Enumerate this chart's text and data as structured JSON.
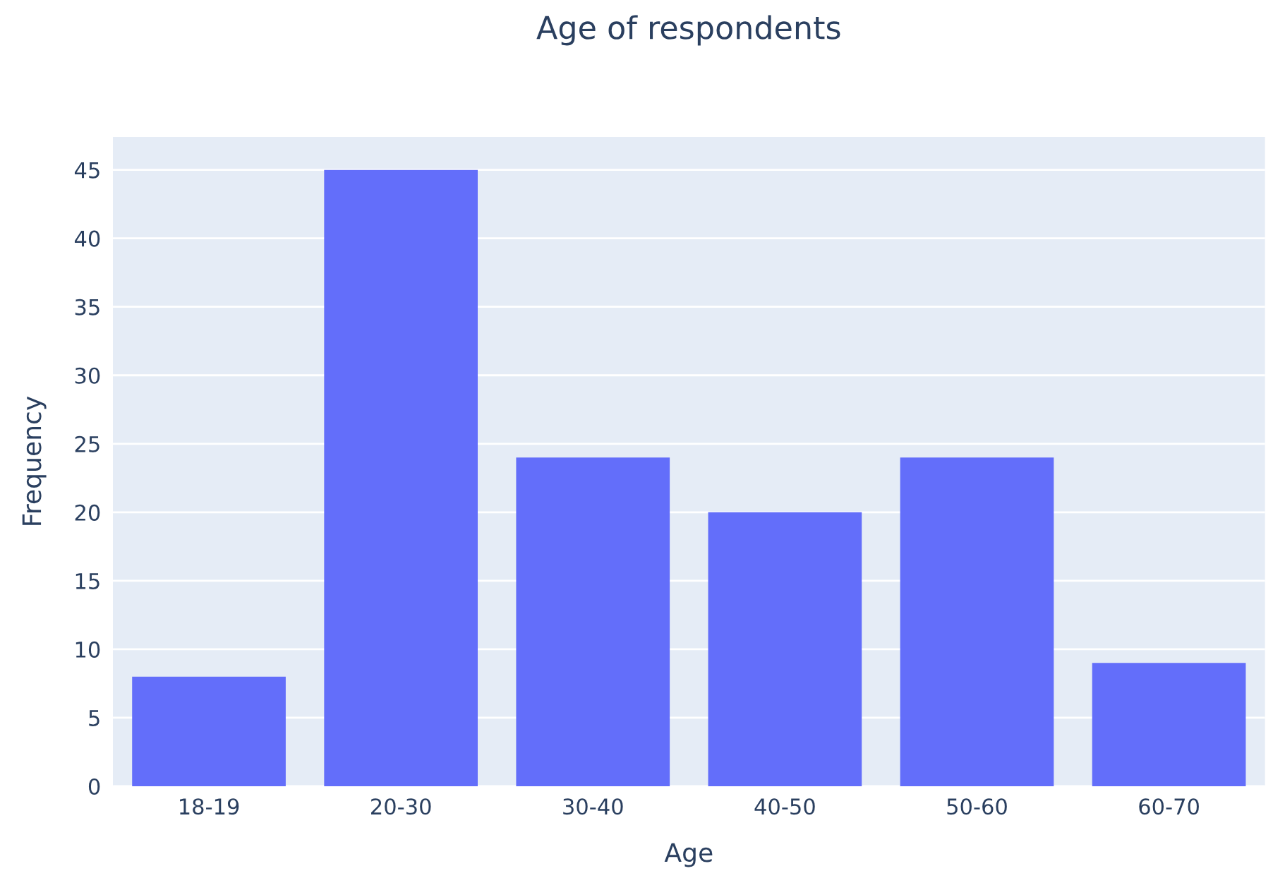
{
  "chart_data": {
    "type": "bar",
    "title": "Age of respondents",
    "xlabel": "Age",
    "ylabel": "Frequency",
    "categories": [
      "18-19",
      "20-30",
      "30-40",
      "40-50",
      "50-60",
      "60-70"
    ],
    "values": [
      8,
      45,
      24,
      20,
      24,
      9
    ],
    "color": "#636efa",
    "ylim": [
      0,
      47.4
    ],
    "yticks": [
      0,
      5,
      10,
      15,
      20,
      25,
      30,
      35,
      40,
      45
    ],
    "grid": "y"
  }
}
